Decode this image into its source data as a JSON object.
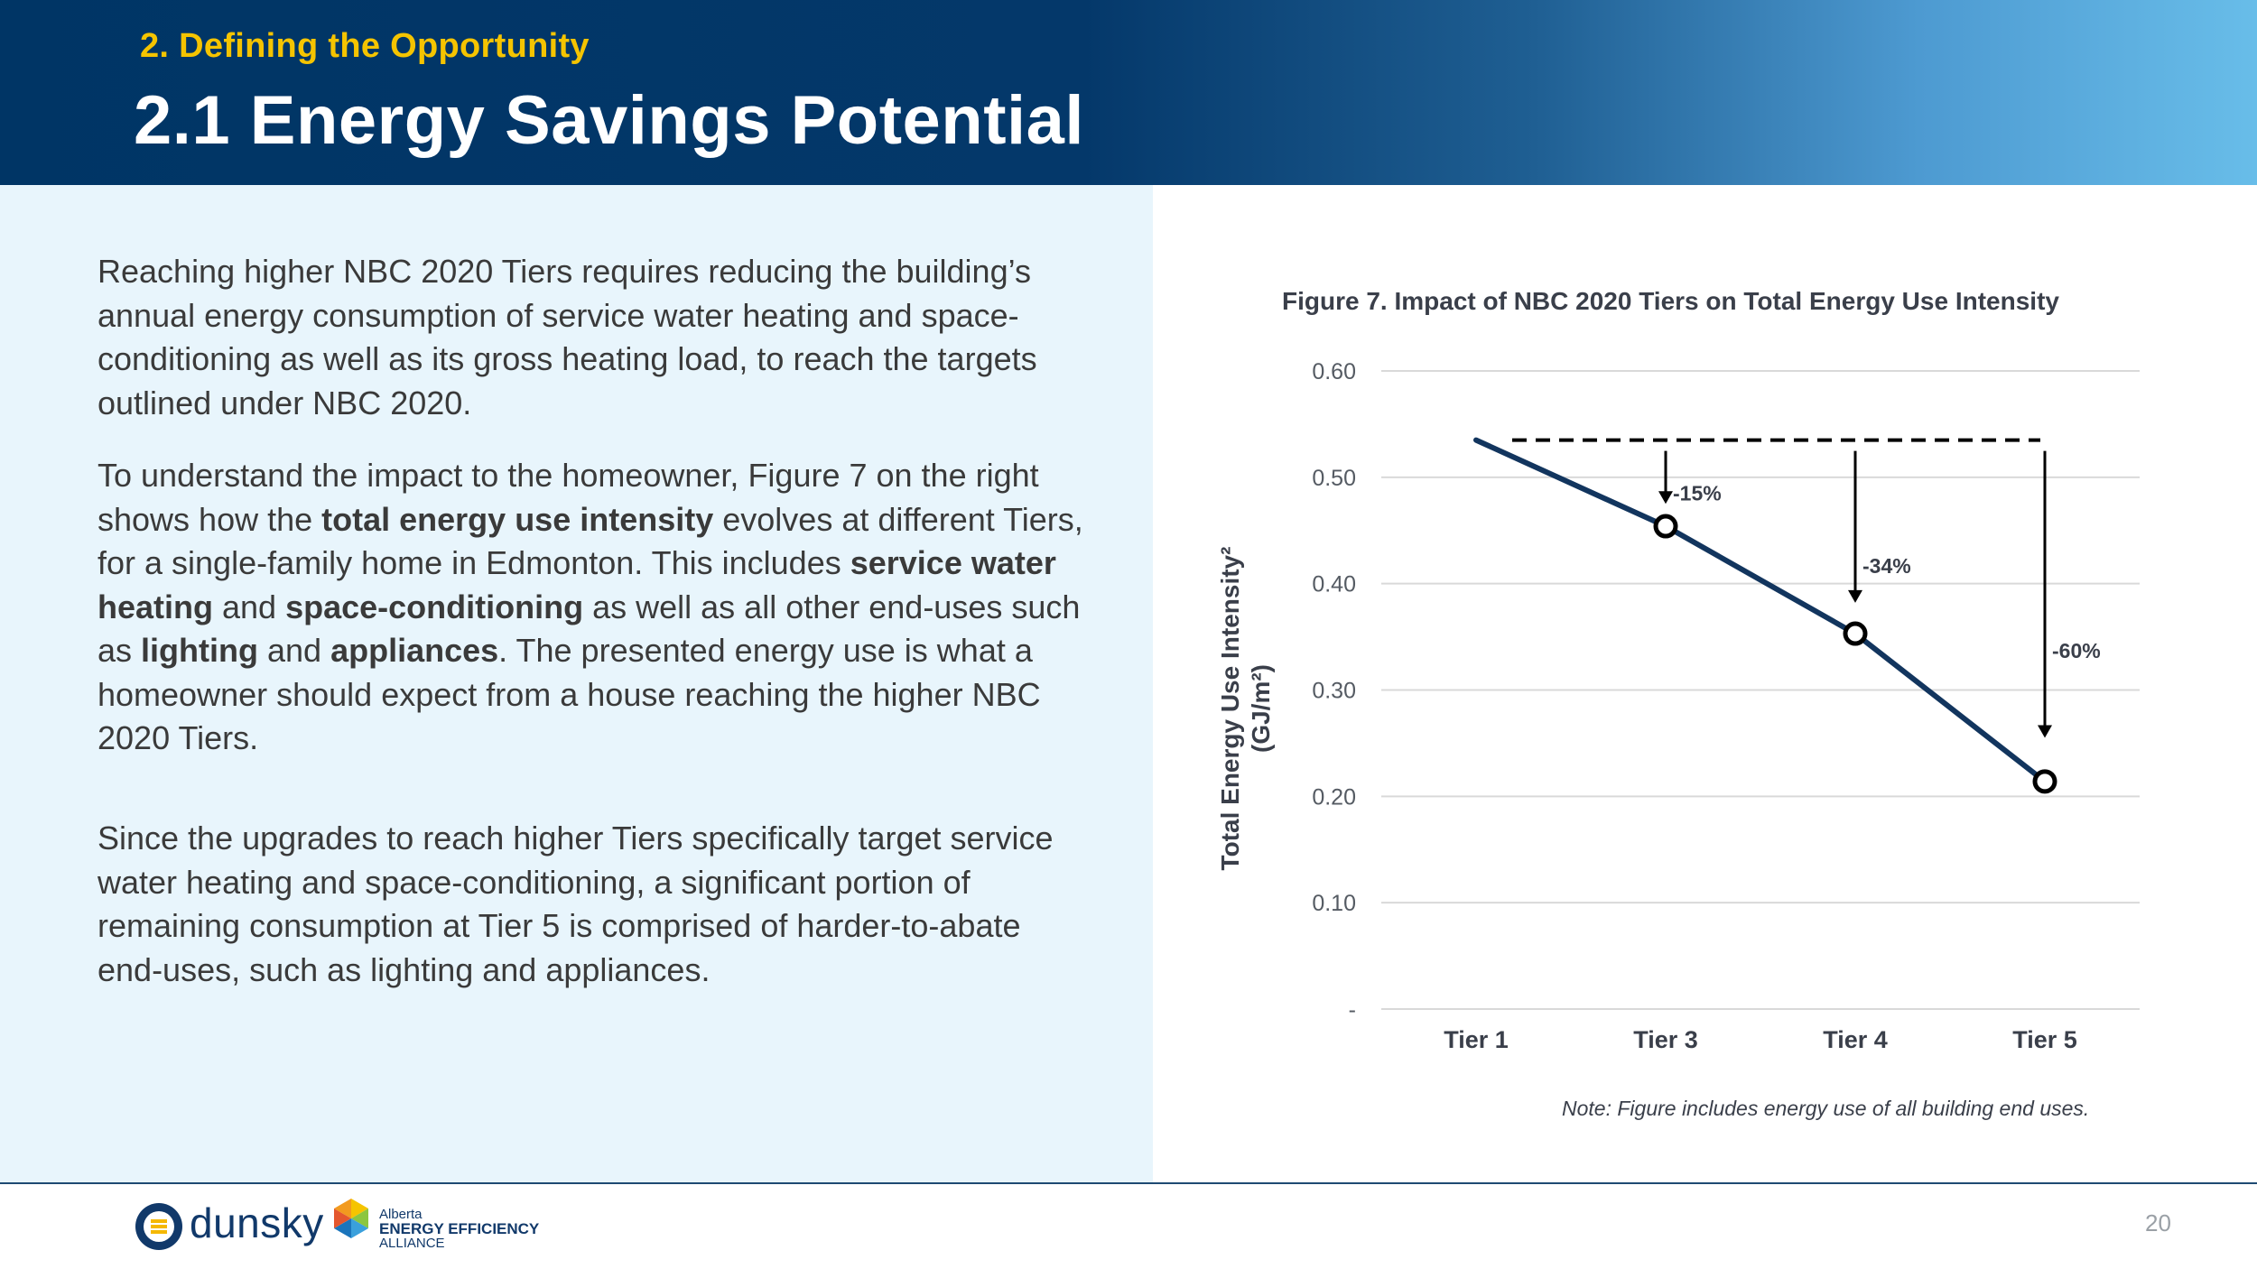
{
  "header": {
    "section": "2. Defining the Opportunity",
    "title": "2.1 Energy Savings Potential"
  },
  "body": {
    "p1": "Reaching higher NBC 2020 Tiers requires reducing the building’s annual energy consumption of service water heating and space-conditioning as well as its gross heating load, to reach the targets outlined under NBC 2020.",
    "p2": {
      "t1": "To understand the impact to the homeowner, Figure 7 on the right shows how the ",
      "b1": "total energy use intensity",
      "t2": " evolves at different Tiers, for a single-family home in Edmonton. This includes ",
      "b2": "service water heating",
      "t3": " and ",
      "b3": "space-conditioning",
      "t4": " as well as all other end-uses such as ",
      "b4": "lighting",
      "t5": " and ",
      "b5": "appliances",
      "t6": ". The presented energy use is what a homeowner should expect from a house reaching the higher NBC 2020 Tiers."
    },
    "p3": "Since the upgrades to reach higher Tiers specifically target service water heating and space-conditioning, a significant portion of remaining consumption at Tier 5 is comprised of harder-to-abate end-uses, such as lighting and appliances."
  },
  "chart_data": {
    "type": "line",
    "title": "Figure 7. Impact of NBC 2020 Tiers on Total Energy Use Intensity",
    "ylabel_line1": "Total Energy Use Intensity²",
    "ylabel_line2": "(GJ/m²)",
    "xlabel": "",
    "categories": [
      "Tier 1",
      "Tier 3",
      "Tier 4",
      "Tier 5"
    ],
    "series": [
      {
        "name": "Total Energy Use Intensity",
        "values": [
          0.535,
          0.454,
          0.353,
          0.214
        ]
      }
    ],
    "baseline": 0.535,
    "y_ticks": [
      {
        "value": 0,
        "label": "-"
      },
      {
        "value": 0.1,
        "label": "0.10"
      },
      {
        "value": 0.2,
        "label": "0.20"
      },
      {
        "value": 0.3,
        "label": "0.30"
      },
      {
        "value": 0.4,
        "label": "0.40"
      },
      {
        "value": 0.5,
        "label": "0.50"
      },
      {
        "value": 0.6,
        "label": "0.60"
      }
    ],
    "ylim": [
      0,
      0.6
    ],
    "grid": true,
    "annotations": [
      {
        "category": "Tier 3",
        "label": "-15%",
        "arrow_to": 0.475
      },
      {
        "category": "Tier 4",
        "label": "-34%",
        "arrow_to": 0.382
      },
      {
        "category": "Tier 5",
        "label": "-60%",
        "arrow_to": 0.255
      }
    ],
    "note": "Note: Figure includes energy use of all building end uses.",
    "colors": {
      "line": "#12355e",
      "grid": "#d9d9d9",
      "text": "#3a3f4a"
    }
  },
  "footer": {
    "brand": "dunsky",
    "partner_line1": "Alberta",
    "partner_line2": "ENERGY EFFICIENCY",
    "partner_line3": "ALLIANCE",
    "page_number": "20"
  }
}
